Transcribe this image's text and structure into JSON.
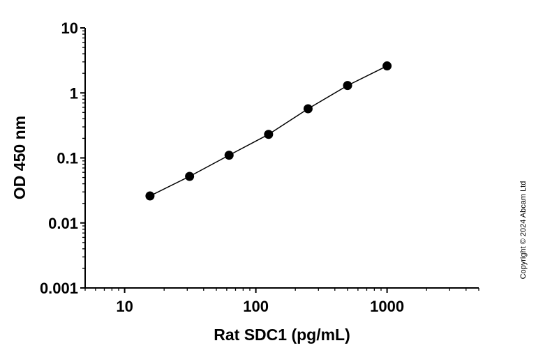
{
  "chart_data": {
    "type": "line",
    "title": "",
    "xlabel": "Rat SDC1 (pg/mL)",
    "ylabel": "OD 450 nm",
    "xscale": "log",
    "yscale": "log",
    "xlim": [
      5,
      5000
    ],
    "ylim": [
      0.001,
      10
    ],
    "x_ticks": [
      "10",
      "100",
      "1000"
    ],
    "y_ticks": [
      "0.001",
      "0.01",
      "0.1",
      "1",
      "10"
    ],
    "grid": false,
    "series": [
      {
        "x": [
          15.6,
          31.25,
          62.5,
          125,
          250,
          500,
          1000
        ],
        "y": [
          0.026,
          0.052,
          0.11,
          0.23,
          0.57,
          1.3,
          2.6
        ],
        "color": "#000000",
        "marker": "circle"
      }
    ]
  },
  "copyright": "Copyright © 2024 Abcam Ltd"
}
